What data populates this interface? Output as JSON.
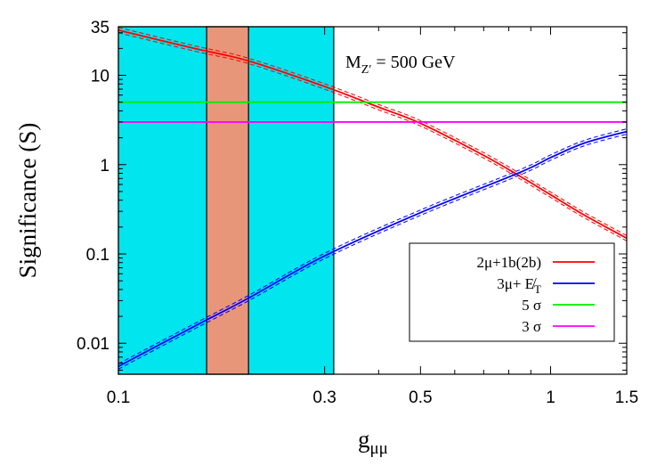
{
  "chart_data": {
    "type": "line",
    "title": "",
    "xlabel": "g",
    "xlabel_sub": "μμ",
    "ylabel": "Significance (S)",
    "xscale": "log",
    "yscale": "log",
    "xlim": [
      0.1,
      1.5
    ],
    "ylim": [
      0.0045,
      35
    ],
    "xticks": [
      {
        "value": 0.1,
        "label": "0.1"
      },
      {
        "value": 0.3,
        "label": "0.3"
      },
      {
        "value": 0.5,
        "label": "0.5"
      },
      {
        "value": 1,
        "label": "1"
      },
      {
        "value": 1.5,
        "label": "1.5"
      }
    ],
    "yticks": [
      {
        "value": 0.01,
        "label": "0.01"
      },
      {
        "value": 0.1,
        "label": "0.1"
      },
      {
        "value": 1,
        "label": "1"
      },
      {
        "value": 10,
        "label": "10"
      },
      {
        "value": 35,
        "label": "35"
      }
    ],
    "annotation": {
      "main": "M",
      "sub": "Z′",
      "rest": " = 500 GeV"
    },
    "bands": [
      {
        "name": "cyan-band",
        "x": [
          0.1,
          0.315
        ],
        "color": "#00e5ee"
      },
      {
        "name": "salmon-band",
        "x": [
          0.16,
          0.2
        ],
        "color": "#e8967a"
      }
    ],
    "series": [
      {
        "name": "2μ+1b(2b)",
        "color": "#ff0000",
        "x": [
          0.1,
          0.15,
          0.2,
          0.3,
          0.4,
          0.5,
          0.7,
          0.85,
          1.0,
          1.2,
          1.5
        ],
        "y": [
          32,
          20,
          14.5,
          7.5,
          4.4,
          2.9,
          1.27,
          0.74,
          0.46,
          0.27,
          0.15
        ]
      },
      {
        "name": "3μ+ E̸T",
        "color": "#0000ff",
        "x": [
          0.1,
          0.15,
          0.2,
          0.3,
          0.5,
          0.85,
          1.0,
          1.2,
          1.5
        ],
        "y": [
          0.0055,
          0.0155,
          0.032,
          0.095,
          0.29,
          0.82,
          1.2,
          1.75,
          2.35
        ]
      },
      {
        "name": "5 σ",
        "color": "#00ee00",
        "x": [
          0.1,
          1.5
        ],
        "y": [
          5,
          5
        ]
      },
      {
        "name": "3 σ",
        "color": "#ff00ff",
        "x": [
          0.1,
          1.5
        ],
        "y": [
          3,
          3
        ]
      }
    ],
    "legend": {
      "position": "bottom-right",
      "entries": [
        {
          "main": "2μ+1b(2b)",
          "sub": "",
          "color": "#ff0000"
        },
        {
          "main": "3μ+ E̸",
          "sub": "T",
          "color": "#0000ff"
        },
        {
          "main": "5 σ",
          "sub": "",
          "color": "#00ee00"
        },
        {
          "main": "3 σ",
          "sub": "",
          "color": "#ff00ff"
        }
      ]
    },
    "grid": false
  }
}
